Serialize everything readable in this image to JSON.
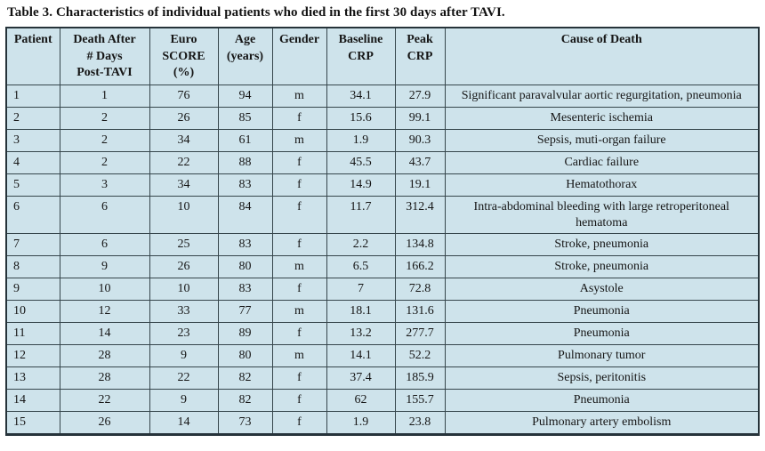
{
  "title": "Table 3. Characteristics of individual patients who died in the first 30 days after TAVI.",
  "colors": {
    "cell_background": "#cee3eb",
    "border": "#36464c",
    "outer_border": "#26333a",
    "text": "#161616",
    "page_background": "#ffffff"
  },
  "table": {
    "columns": [
      "Patient",
      "Death After\n# Days\nPost-TAVI",
      "Euro\nSCORE\n(%)",
      "Age\n(years)",
      "Gender",
      "Baseline\nCRP",
      "Peak\nCRP",
      "Cause of Death"
    ],
    "rows": [
      [
        "1",
        "1",
        "76",
        "94",
        "m",
        "34.1",
        "27.9",
        "Significant paravalvular aortic regurgitation, pneumonia"
      ],
      [
        "2",
        "2",
        "26",
        "85",
        "f",
        "15.6",
        "99.1",
        "Mesenteric ischemia"
      ],
      [
        "3",
        "2",
        "34",
        "61",
        "m",
        "1.9",
        "90.3",
        "Sepsis, muti-organ failure"
      ],
      [
        "4",
        "2",
        "22",
        "88",
        "f",
        "45.5",
        "43.7",
        "Cardiac failure"
      ],
      [
        "5",
        "3",
        "34",
        "83",
        "f",
        "14.9",
        "19.1",
        "Hematothorax"
      ],
      [
        "6",
        "6",
        "10",
        "84",
        "f",
        "11.7",
        "312.4",
        "Intra-abdominal bleeding with large retroperitoneal hematoma"
      ],
      [
        "7",
        "6",
        "25",
        "83",
        "f",
        "2.2",
        "134.8",
        "Stroke, pneumonia"
      ],
      [
        "8",
        "9",
        "26",
        "80",
        "m",
        "6.5",
        "166.2",
        "Stroke, pneumonia"
      ],
      [
        "9",
        "10",
        "10",
        "83",
        "f",
        "7",
        "72.8",
        "Asystole"
      ],
      [
        "10",
        "12",
        "33",
        "77",
        "m",
        "18.1",
        "131.6",
        "Pneumonia"
      ],
      [
        "11",
        "14",
        "23",
        "89",
        "f",
        "13.2",
        "277.7",
        "Pneumonia"
      ],
      [
        "12",
        "28",
        "9",
        "80",
        "m",
        "14.1",
        "52.2",
        "Pulmonary tumor"
      ],
      [
        "13",
        "28",
        "22",
        "82",
        "f",
        "37.4",
        "185.9",
        "Sepsis, peritonitis"
      ],
      [
        "14",
        "22",
        "9",
        "82",
        "f",
        "62",
        "155.7",
        "Pneumonia"
      ],
      [
        "15",
        "26",
        "14",
        "73",
        "f",
        "1.9",
        "23.8",
        "Pulmonary artery embolism"
      ]
    ]
  }
}
